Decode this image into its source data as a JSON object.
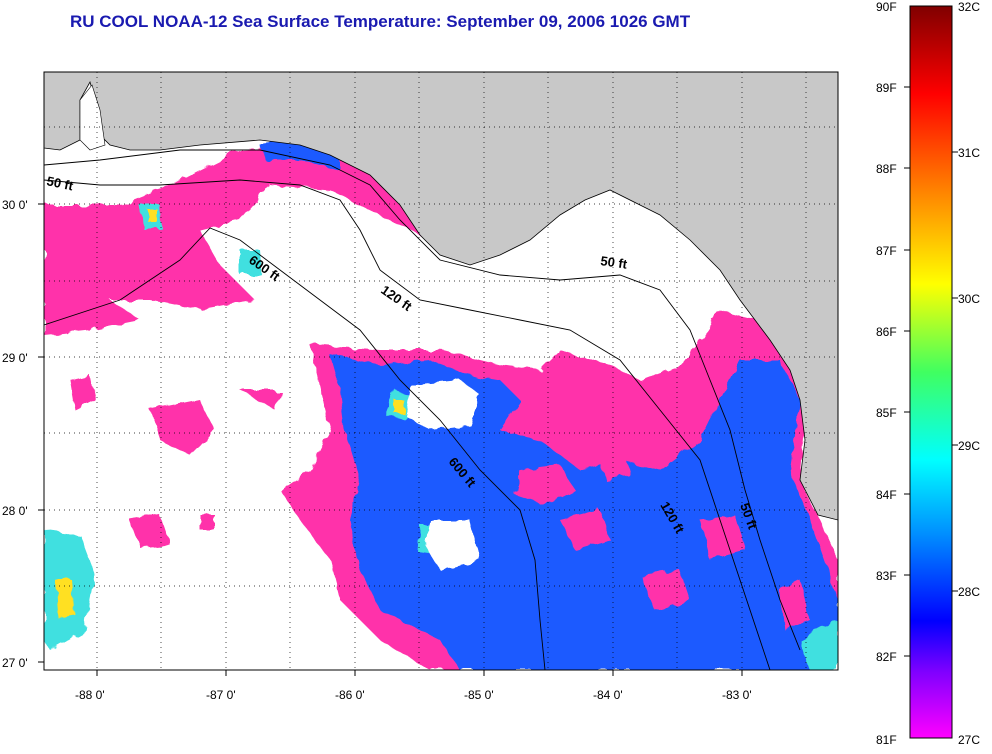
{
  "title": "RU COOL  NOAA-12  Sea Surface Temperature:  September 09, 2006 1026 GMT",
  "map": {
    "x_ticks": [
      "-88 0'",
      "-87 0'",
      "-86 0'",
      "-85 0'",
      "-84 0'",
      "-83 0'"
    ],
    "y_ticks": [
      "30 0'",
      "29 0'",
      "28 0'",
      "27 0'"
    ],
    "isobath_labels": [
      "50 ft",
      "600 ft",
      "120 ft",
      "50 ft",
      "600 ft",
      "120 ft",
      "50 ft"
    ]
  },
  "colorbar": {
    "f_labels": [
      "90F",
      "89F",
      "88F",
      "87F",
      "86F",
      "85F",
      "84F",
      "83F",
      "82F",
      "81F"
    ],
    "c_labels": [
      "32C",
      "31C",
      "30C",
      "29C",
      "28C",
      "27C"
    ],
    "colors": [
      "#800000",
      "#ff0000",
      "#ff8000",
      "#ffff00",
      "#80ff00",
      "#00ffff",
      "#0080ff",
      "#0000ff",
      "#8000ff",
      "#ff00ff"
    ]
  },
  "colors": {
    "land": "#c8c8c8",
    "sea_cloud": "#ffffff",
    "cold_pink": "#ff33aa",
    "blue_water": "#1e5aff",
    "title": "#1a1ab0"
  }
}
